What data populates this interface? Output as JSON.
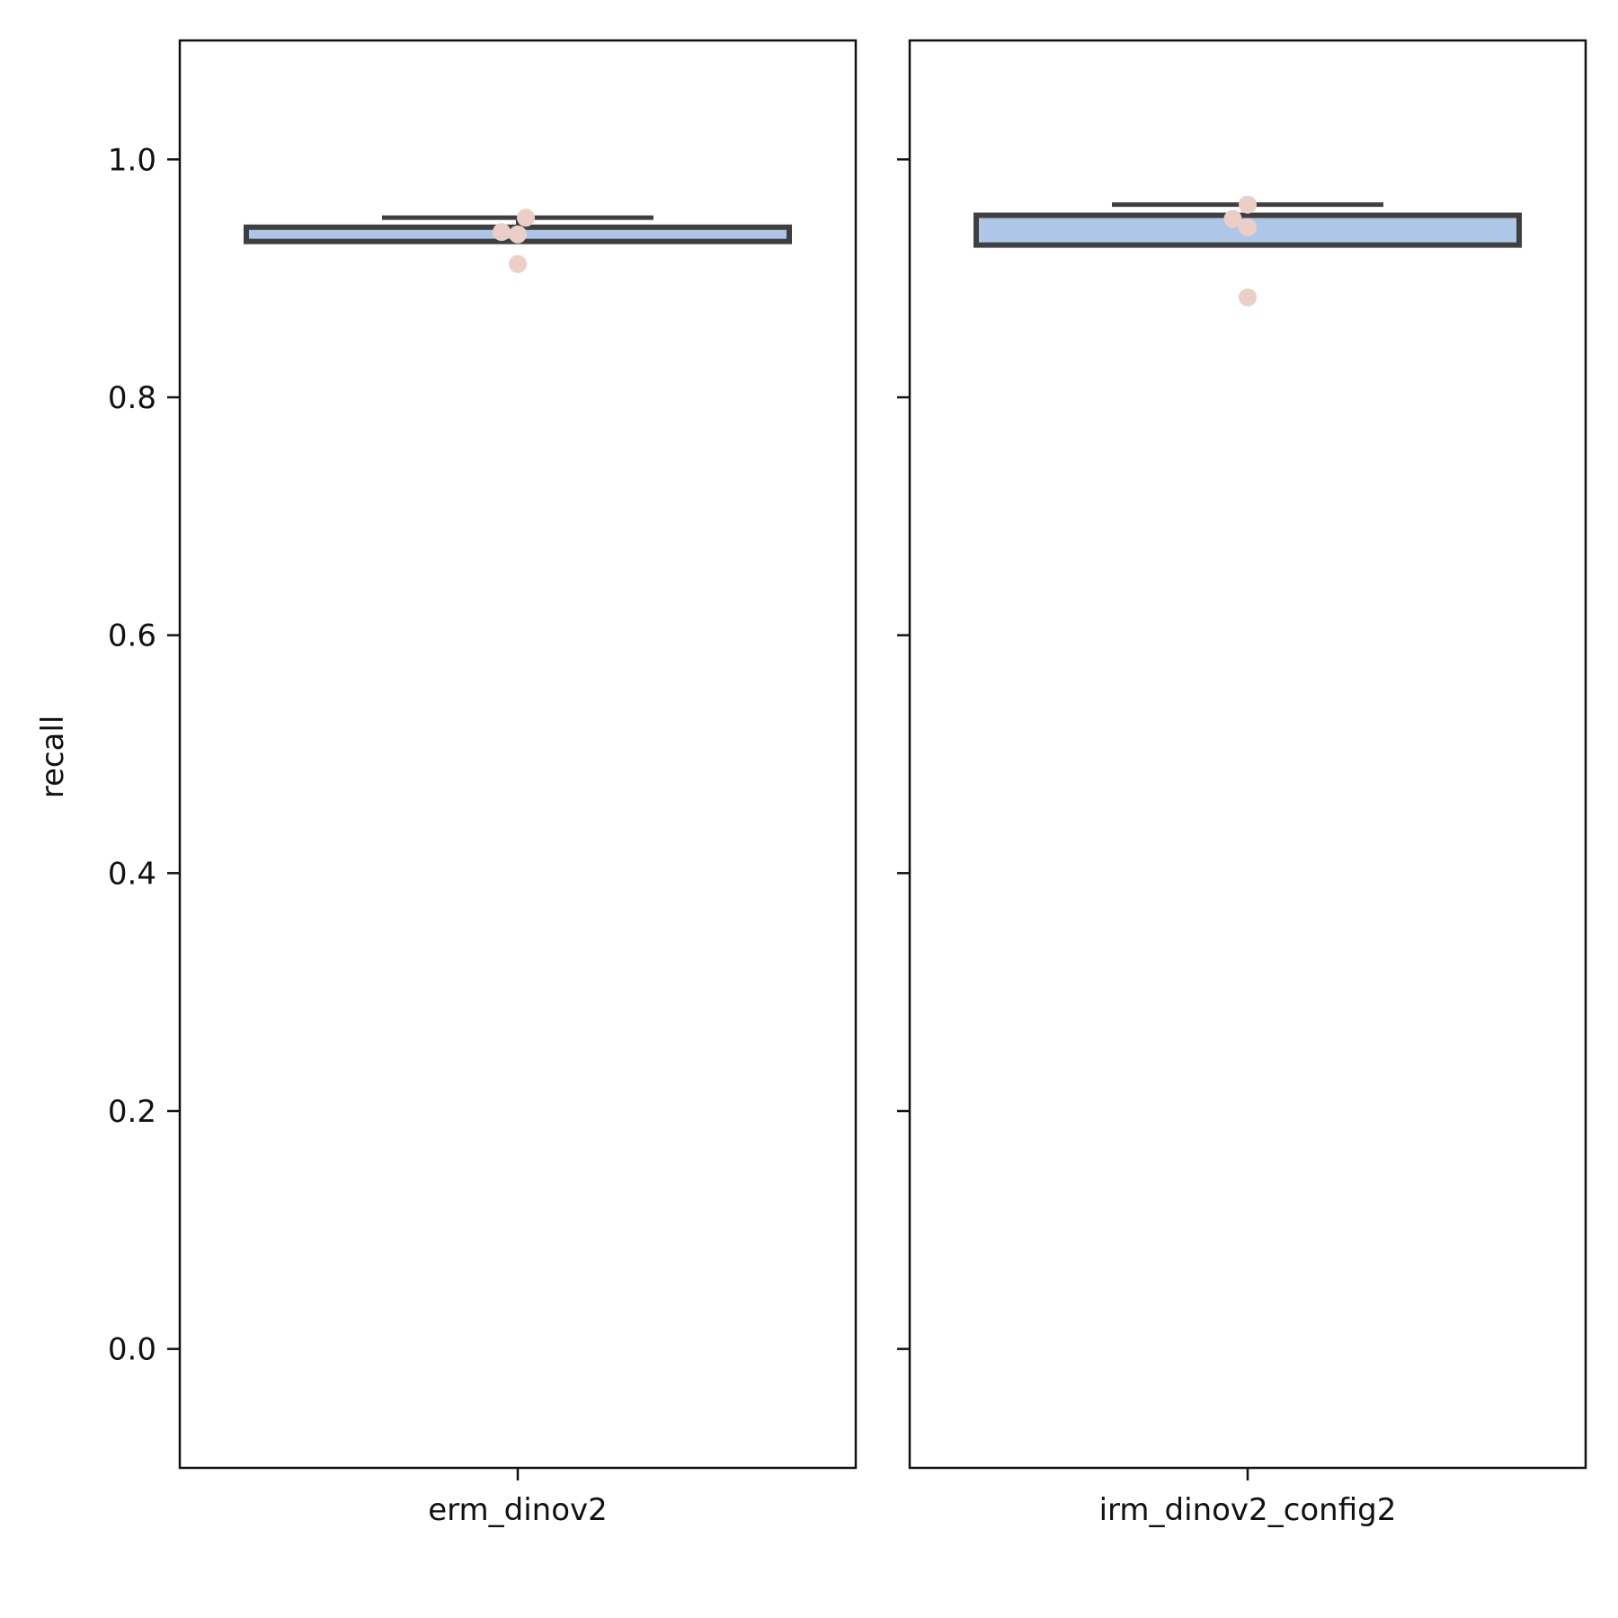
{
  "chart_data": {
    "type": "box",
    "ylabel": "recall",
    "ylim": [
      -0.1,
      1.1
    ],
    "yticks": [
      "0.0",
      "0.2",
      "0.4",
      "0.6",
      "0.8",
      "1.0"
    ],
    "sharey": true,
    "grid": false,
    "colors": {
      "box_line": "#3f3f3f",
      "box_fill": "#aec7e8",
      "point": "#ebcfc7",
      "axes": "#111111"
    },
    "panels": [
      {
        "category": "erm_dinov2",
        "box": {
          "q1": 0.931,
          "median": 0.935,
          "q3": 0.943,
          "whisker_low": 0.931,
          "whisker_high": 0.951
        },
        "points": [
          {
            "x": -0.06,
            "y": 0.939
          },
          {
            "x": 0.0,
            "y": 0.937
          },
          {
            "x": 0.03,
            "y": 0.951
          },
          {
            "x": 0.0,
            "y": 0.912
          }
        ]
      },
      {
        "category": "irm_dinov2_config2",
        "box": {
          "q1": 0.928,
          "median": 0.947,
          "q3": 0.953,
          "whisker_low": 0.928,
          "whisker_high": 0.962
        },
        "points": [
          {
            "x": -0.055,
            "y": 0.95
          },
          {
            "x": 0.0,
            "y": 0.962
          },
          {
            "x": 0.0,
            "y": 0.943
          },
          {
            "x": 0.0,
            "y": 0.884
          }
        ]
      }
    ]
  }
}
